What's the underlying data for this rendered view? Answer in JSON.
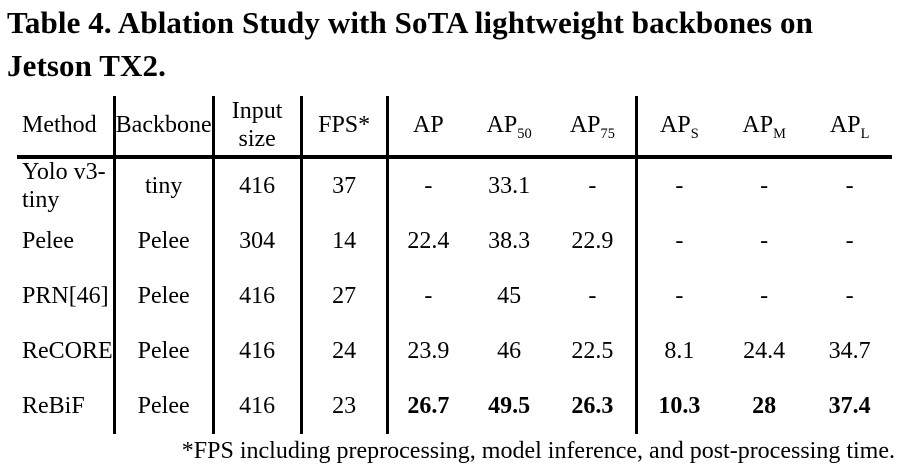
{
  "page": {
    "background_color": "#ffffff",
    "text_color": "#000000"
  },
  "title": "Table 4. Ablation Study with SoTA lightweight backbones on Jetson TX2.",
  "table": {
    "headers": [
      {
        "base": "Method",
        "sub": ""
      },
      {
        "base": "Backbone",
        "sub": ""
      },
      {
        "base": "Input size",
        "sub": ""
      },
      {
        "base": "FPS*",
        "sub": ""
      },
      {
        "base": "AP",
        "sub": ""
      },
      {
        "base": "AP",
        "sub": "50"
      },
      {
        "base": "AP",
        "sub": "75"
      },
      {
        "base": "AP",
        "sub": "S"
      },
      {
        "base": "AP",
        "sub": "M"
      },
      {
        "base": "AP",
        "sub": "L"
      }
    ],
    "rows": [
      {
        "method": "Yolo v3-tiny",
        "backbone": "tiny",
        "input_size": "416",
        "fps": "37",
        "ap": "-",
        "ap50": "33.1",
        "ap75": "-",
        "ap_s": "-",
        "ap_m": "-",
        "ap_l": "-"
      },
      {
        "method": "Pelee",
        "backbone": "Pelee",
        "input_size": "304",
        "fps": "14",
        "ap": "22.4",
        "ap50": "38.3",
        "ap75": "22.9",
        "ap_s": "-",
        "ap_m": "-",
        "ap_l": "-"
      },
      {
        "method": "PRN[46]",
        "backbone": "Pelee",
        "input_size": "416",
        "fps": "27",
        "ap": "-",
        "ap50": "45",
        "ap75": "-",
        "ap_s": "-",
        "ap_m": "-",
        "ap_l": "-"
      },
      {
        "method": "ReCORE",
        "backbone": "Pelee",
        "input_size": "416",
        "fps": "24",
        "ap": "23.9",
        "ap50": "46",
        "ap75": "22.5",
        "ap_s": "8.1",
        "ap_m": "24.4",
        "ap_l": "34.7"
      },
      {
        "method": "ReBiF",
        "backbone": "Pelee",
        "input_size": "416",
        "fps": "23",
        "ap": "26.7",
        "ap50": "49.5",
        "ap75": "26.3",
        "ap_s": "10.3",
        "ap_m": "28",
        "ap_l": "37.4"
      }
    ]
  },
  "footnote": "*FPS including preprocessing, model inference, and post-processing time."
}
